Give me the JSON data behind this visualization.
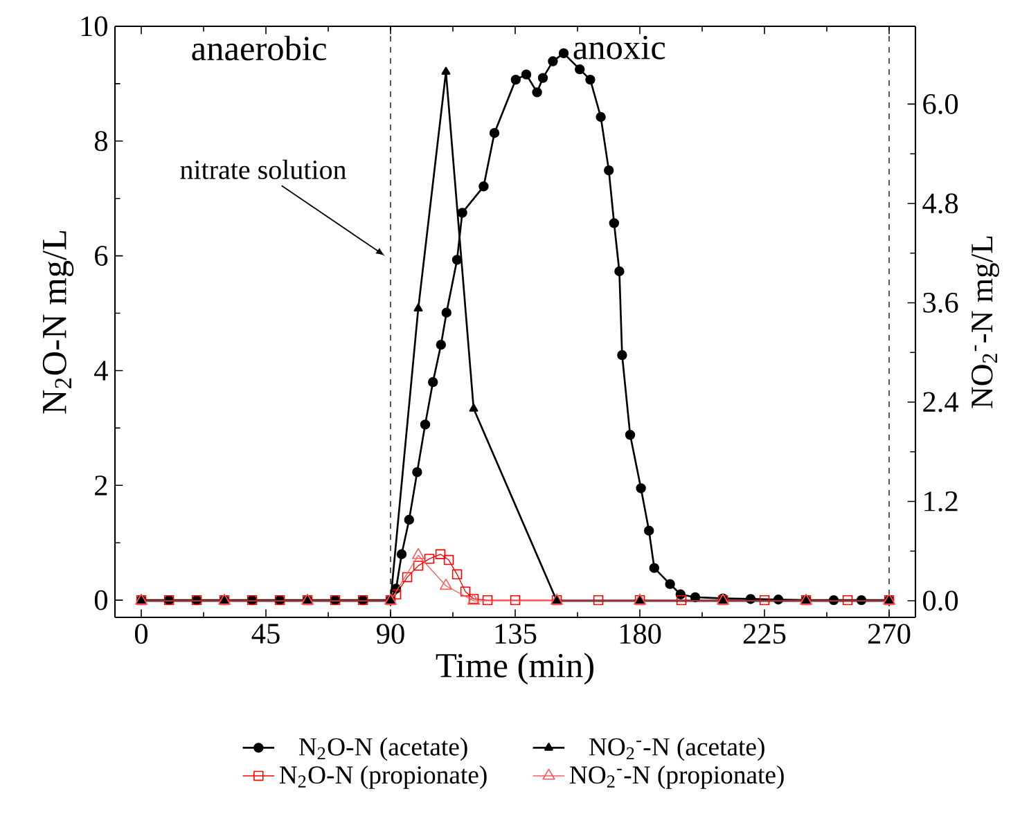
{
  "chart_data": {
    "type": "line",
    "xlabel": "Time (min)",
    "ylabel": "N$_{2}$O-N mg/L",
    "y2label": "NO$_{2}$$^{-}$-N  mg/L",
    "xlim": [
      -9.5,
      279.5
    ],
    "ylim": [
      -0.3,
      10
    ],
    "y2lim": [
      -0.2,
      6.94
    ],
    "xticks": [
      0,
      45,
      90,
      135,
      180,
      225,
      270
    ],
    "yticks": [
      0,
      2,
      4,
      6,
      8,
      10
    ],
    "y2ticks": [
      {
        "value": 0,
        "label": "0.0"
      },
      {
        "value": 1.2,
        "label": "1.2"
      },
      {
        "value": 2.4,
        "label": "2.4"
      },
      {
        "value": 3.6,
        "label": "3.6"
      },
      {
        "value": 4.8,
        "label": "4.8"
      },
      {
        "value": 6.0,
        "label": "6.0"
      }
    ],
    "legend": "bottom",
    "grid": false,
    "ref_lines": [
      {
        "axis": "x",
        "value": 90,
        "line_style": "dashed",
        "color": "#000000"
      },
      {
        "axis": "x",
        "value": 270,
        "line_style": "dashed",
        "color": "#000000"
      }
    ],
    "annotations": [
      "anaerobic",
      "anoxic",
      {
        "text": "nitrate solution",
        "x": 88,
        "y": 6.0
      }
    ],
    "series": [
      {
        "name": "N$_{2}$O-N (acetate)",
        "color": "#000000",
        "marker": "circle",
        "x": [
          0,
          10,
          20,
          30,
          40,
          50,
          60,
          70,
          80,
          90,
          92,
          94,
          96.7,
          99.6,
          102.5,
          105.3,
          108.2,
          110.2,
          114,
          115.9,
          123.6,
          127.5,
          135.2,
          139,
          142.9,
          145,
          148.6,
          152.5,
          158.3,
          162.1,
          165.9,
          168.8,
          170.7,
          172.6,
          173.6,
          176.5,
          180.4,
          183.3,
          185.2,
          190.9,
          194.7,
          200,
          210,
          220,
          230,
          240,
          250,
          260,
          270
        ],
        "values": [
          0,
          0,
          0,
          0,
          0,
          0,
          0,
          0,
          0,
          0,
          0.2,
          0.8,
          1.4,
          2.23,
          3.06,
          3.8,
          4.45,
          5.01,
          5.93,
          6.75,
          7.21,
          8.14,
          9.07,
          9.16,
          8.85,
          9.1,
          9.39,
          9.53,
          9.25,
          9.07,
          8.42,
          7.49,
          6.57,
          5.73,
          4.27,
          2.88,
          1.95,
          1.21,
          0.56,
          0.28,
          0.1,
          0.05,
          0.03,
          0.02,
          0.01,
          0,
          0,
          0,
          0
        ]
      },
      {
        "name": "NO$_{2}$$^{-}$-N (acetate)",
        "color": "#000000",
        "marker": "triangle",
        "axis": "y2",
        "x": [
          0,
          30,
          60,
          90,
          100,
          110,
          120,
          150,
          180,
          210,
          240,
          270
        ],
        "values": [
          0,
          0,
          0,
          0,
          3.53,
          6.39,
          2.32,
          0,
          0,
          0,
          0,
          0
        ]
      },
      {
        "name": "N$_{2}$O-N (propionate)",
        "color": "#ff0000",
        "marker": "square",
        "x": [
          0,
          10,
          20,
          30,
          40,
          50,
          60,
          70,
          80,
          90,
          92,
          96,
          100,
          104,
          108,
          111,
          114,
          117,
          120,
          125,
          135,
          150,
          165,
          180,
          195,
          210,
          225,
          240,
          255,
          270
        ],
        "values": [
          0,
          0,
          0,
          0,
          0,
          0,
          0,
          0,
          0,
          0,
          0.1,
          0.4,
          0.6,
          0.72,
          0.8,
          0.7,
          0.45,
          0.15,
          0.02,
          0,
          0,
          0,
          0,
          0,
          0,
          0,
          0,
          0,
          0,
          0
        ]
      },
      {
        "name": "NO$_{2}$$^{-}$-N (propionate)",
        "color": "#ff5a5a",
        "marker": "triangle",
        "axis": "y2",
        "x": [
          0,
          30,
          60,
          90,
          100,
          110,
          120,
          150,
          180,
          210,
          240,
          270
        ],
        "values": [
          0,
          0,
          0,
          0,
          0.55,
          0.18,
          0,
          0,
          0,
          0,
          0,
          0
        ]
      }
    ]
  }
}
